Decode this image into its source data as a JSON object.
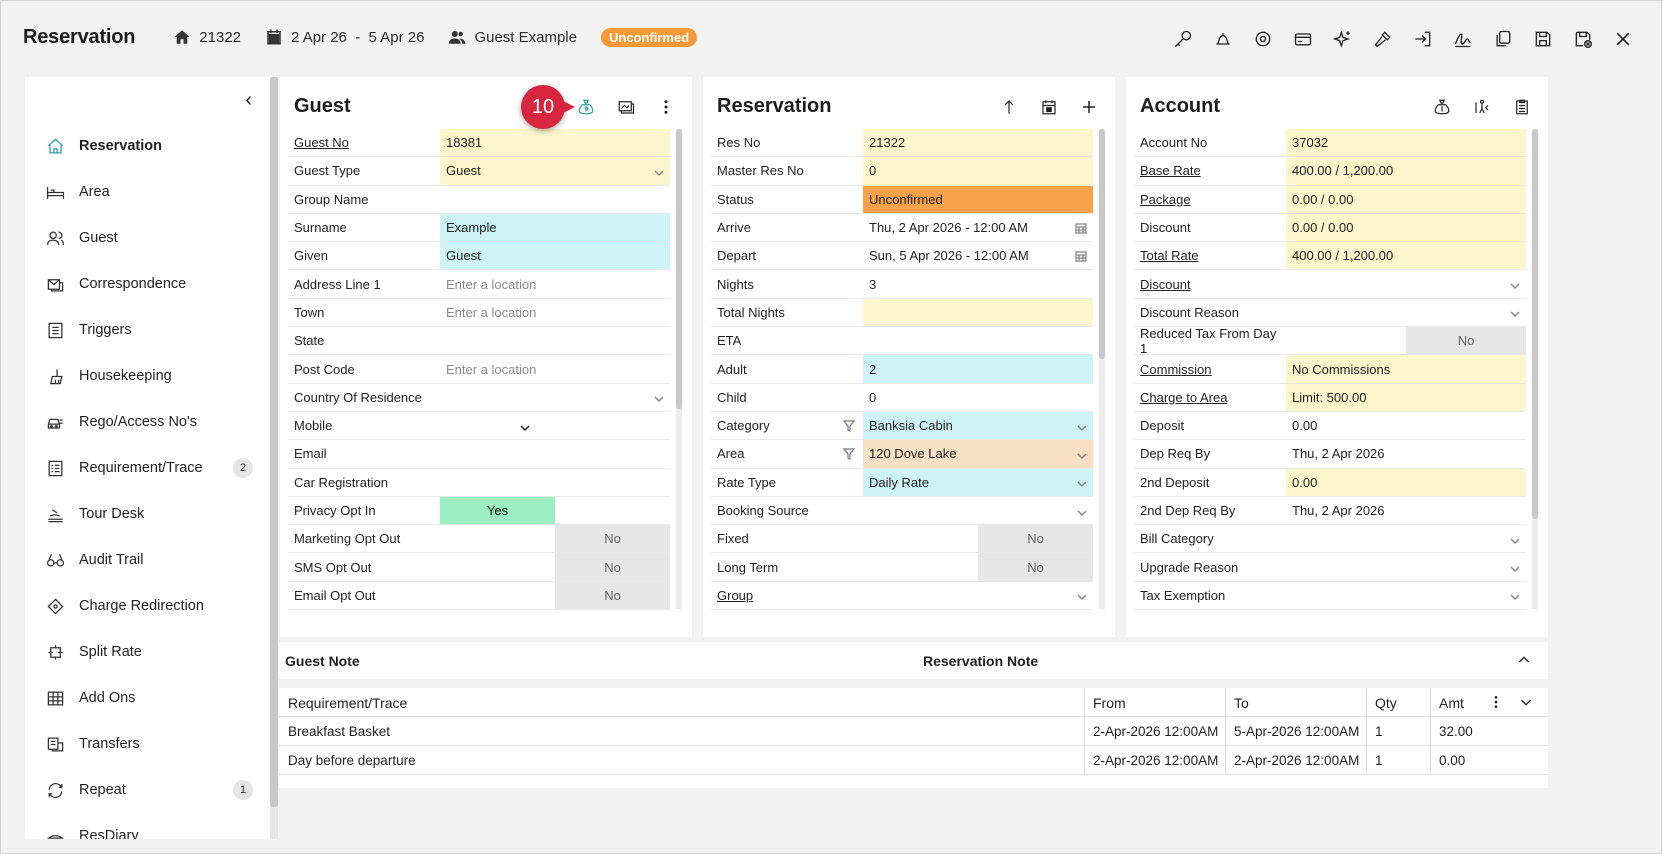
{
  "header": {
    "title": "Reservation",
    "res_no": "21322",
    "dates": "2 Apr 26  -  5 Apr 26",
    "guest": "Guest Example",
    "status_badge": "Unconfirmed"
  },
  "toolbar": {
    "icons": [
      "key-icon",
      "bell-icon",
      "settings-icon",
      "credit-card-icon",
      "sparkle-icon",
      "hammer-icon",
      "sign-in-icon",
      "sign-icon",
      "copy-icon",
      "save-icon",
      "save-close-icon",
      "close-icon"
    ]
  },
  "sidebar": {
    "items": [
      {
        "label": "Reservation",
        "icon": "home-icon",
        "active": true
      },
      {
        "label": "Area",
        "icon": "bed-icon"
      },
      {
        "label": "Guest",
        "icon": "users-icon"
      },
      {
        "label": "Correspondence",
        "icon": "mail-icon"
      },
      {
        "label": "Triggers",
        "icon": "list-icon"
      },
      {
        "label": "Housekeeping",
        "icon": "broom-icon"
      },
      {
        "label": "Rego/Access No's",
        "icon": "car-icon"
      },
      {
        "label": "Requirement/Trace",
        "icon": "checklist-icon",
        "count": "2"
      },
      {
        "label": "Tour Desk",
        "icon": "tour-icon"
      },
      {
        "label": "Audit Trail",
        "icon": "glasses-icon"
      },
      {
        "label": "Charge Redirection",
        "icon": "diamond-icon"
      },
      {
        "label": "Split Rate",
        "icon": "split-icon"
      },
      {
        "label": "Add Ons",
        "icon": "grid-icon"
      },
      {
        "label": "Transfers",
        "icon": "transfer-icon"
      },
      {
        "label": "Repeat",
        "icon": "repeat-icon",
        "count": "1"
      },
      {
        "label": "ResDiary",
        "icon": "diary-icon"
      }
    ]
  },
  "guest_panel": {
    "title": "Guest",
    "marker": "10",
    "rows": [
      {
        "label": "Guest No",
        "value": "18381",
        "style": "yellow",
        "link": true
      },
      {
        "label": "Guest Type",
        "value": "Guest",
        "style": "yellow",
        "chevron": true
      },
      {
        "label": "Group Name",
        "value": ""
      },
      {
        "label": "Surname",
        "value": "Example",
        "style": "cyan"
      },
      {
        "label": "Given",
        "value": "Guest",
        "style": "cyan"
      },
      {
        "label": "Address Line 1",
        "value": "Enter a location",
        "placeholder": true
      },
      {
        "label": "Town",
        "value": "Enter a location",
        "placeholder": true
      },
      {
        "label": "State",
        "value": ""
      },
      {
        "label": "Post Code",
        "value": "Enter a location",
        "placeholder": true
      },
      {
        "label": "Country Of Residence",
        "value": "",
        "chevron": true
      },
      {
        "label": "Mobile",
        "value": "",
        "midchevron": true
      },
      {
        "label": "Email",
        "value": ""
      },
      {
        "label": "Car Registration",
        "value": ""
      },
      {
        "label": "Privacy Opt In",
        "value": "Yes",
        "toggle": "yes"
      },
      {
        "label": "Marketing Opt Out",
        "value": "No",
        "toggle": "no"
      },
      {
        "label": "SMS Opt Out",
        "value": "No",
        "toggle": "no"
      },
      {
        "label": "Email Opt Out",
        "value": "No",
        "toggle": "no"
      }
    ]
  },
  "reservation_panel": {
    "title": "Reservation",
    "rows": [
      {
        "label": "Res No",
        "value": "21322",
        "style": "yellow"
      },
      {
        "label": "Master Res No",
        "value": "0",
        "style": "yellow"
      },
      {
        "label": "Status",
        "value": "Unconfirmed",
        "style": "orange"
      },
      {
        "label": "Arrive",
        "value": "Thu, 2 Apr 2026 - 12:00 AM",
        "calendar": true
      },
      {
        "label": "Depart",
        "value": "Sun, 5 Apr 2026 - 12:00 AM",
        "calendar": true
      },
      {
        "label": "Nights",
        "value": "3"
      },
      {
        "label": "Total Nights",
        "value": "",
        "style": "yellow"
      },
      {
        "label": "ETA",
        "value": ""
      },
      {
        "label": "Adult",
        "value": "2",
        "style": "cyan"
      },
      {
        "label": "Child",
        "value": "0"
      },
      {
        "label": "Category",
        "value": "Banksia Cabin",
        "style": "cyan",
        "chevron": true,
        "filter": true
      },
      {
        "label": "Area",
        "value": "120 Dove Lake",
        "style": "tan",
        "chevron": true,
        "filter": true
      },
      {
        "label": "Rate Type",
        "value": "Daily Rate",
        "style": "cyan",
        "chevron": true
      },
      {
        "label": "Booking Source",
        "value": "",
        "chevron": true
      },
      {
        "label": "Fixed",
        "value": "No",
        "toggle": "no"
      },
      {
        "label": "Long Term",
        "value": "No",
        "toggle": "no"
      },
      {
        "label": "Group",
        "value": "",
        "chevron": true,
        "link": true
      }
    ]
  },
  "account_panel": {
    "title": "Account",
    "rows": [
      {
        "label": "Account No",
        "value": "37032",
        "style": "yellow"
      },
      {
        "label": "Base Rate",
        "value": "400.00 / 1,200.00",
        "style": "yellow",
        "link": true
      },
      {
        "label": "Package",
        "value": "0.00 / 0.00",
        "style": "yellow",
        "link": true
      },
      {
        "label": "Discount",
        "value": "0.00 / 0.00",
        "style": "yellow"
      },
      {
        "label": "Total Rate",
        "value": "400.00 / 1,200.00",
        "style": "yellow",
        "link": true
      },
      {
        "label": "Discount",
        "value": "",
        "chevron": true,
        "link": true
      },
      {
        "label": "Discount Reason",
        "value": "",
        "chevron": true
      },
      {
        "label": "Reduced Tax From Day 1",
        "value": "No",
        "toggle": "no"
      },
      {
        "label": "Commission",
        "value": "No Commissions",
        "style": "yellow",
        "link": true
      },
      {
        "label": "Charge to Area",
        "value": "Limit: 500.00",
        "style": "yellow",
        "link": true
      },
      {
        "label": "Deposit",
        "value": "0.00"
      },
      {
        "label": "Dep Req By",
        "value": "Thu, 2 Apr 2026"
      },
      {
        "label": "2nd Deposit",
        "value": "0.00",
        "style": "yellow"
      },
      {
        "label": "2nd Dep Req By",
        "value": "Thu, 2 Apr 2026"
      },
      {
        "label": "Bill Category",
        "value": "",
        "chevron": true
      },
      {
        "label": "Upgrade Reason",
        "value": "",
        "chevron": true
      },
      {
        "label": "Tax Exemption",
        "value": "",
        "chevron": true
      }
    ]
  },
  "notes": {
    "guest_note": "Guest Note",
    "reservation_note": "Reservation Note"
  },
  "requirements": {
    "headers": {
      "name": "Requirement/Trace",
      "from": "From",
      "to": "To",
      "qty": "Qty",
      "amt": "Amt"
    },
    "rows": [
      {
        "name": "Breakfast Basket",
        "from": "2-Apr-2026 12:00AM",
        "to": "5-Apr-2026 12:00AM",
        "qty": "1",
        "amt": "32.00"
      },
      {
        "name": "Day before departure",
        "from": "2-Apr-2026 12:00AM",
        "to": "2-Apr-2026 12:00AM",
        "qty": "1",
        "amt": "0.00"
      }
    ]
  }
}
